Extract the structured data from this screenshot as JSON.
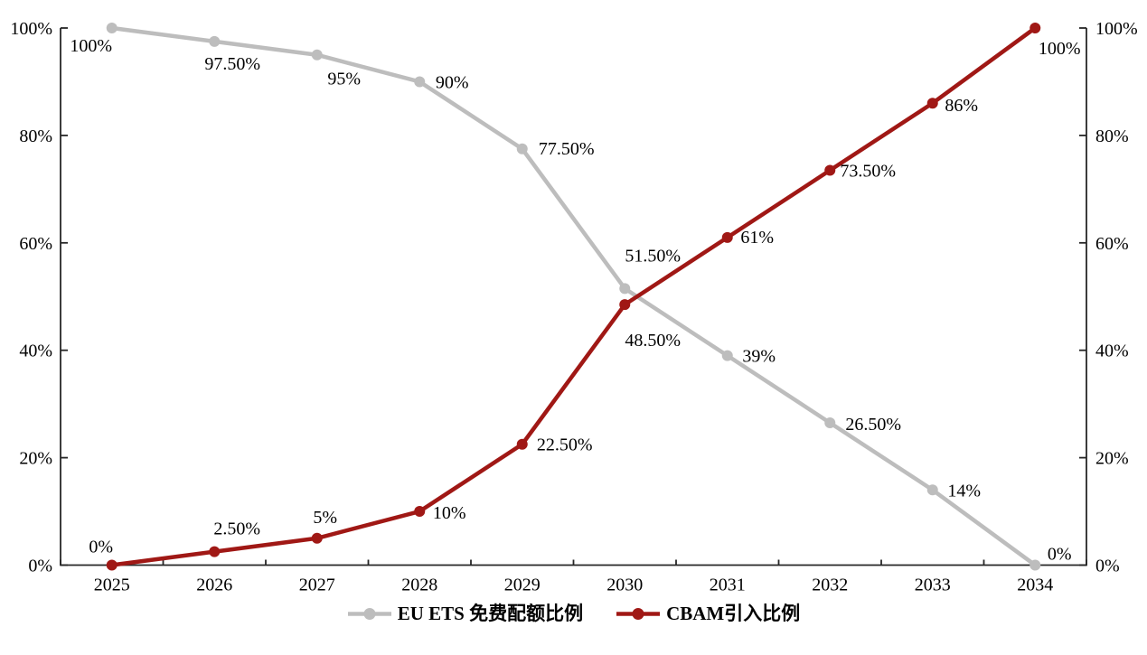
{
  "chart_data": {
    "type": "line",
    "title": "",
    "xlabel": "",
    "ylabel": "",
    "x": [
      "2025",
      "2026",
      "2027",
      "2028",
      "2029",
      "2030",
      "2031",
      "2032",
      "2033",
      "2034"
    ],
    "y_axis": {
      "min": 0,
      "max": 100,
      "ticks": [
        0,
        20,
        40,
        60,
        80,
        100
      ],
      "tick_labels": [
        "0%",
        "20%",
        "40%",
        "60%",
        "80%",
        "100%"
      ],
      "dual_axis": true,
      "grid": false
    },
    "series": [
      {
        "name": "EU ETS 免费配额比例",
        "color": "#BDBDBD",
        "values": [
          100,
          97.5,
          95,
          90,
          77.5,
          51.5,
          39,
          26.5,
          14,
          0
        ],
        "labels": [
          "100%",
          "97.50%",
          "95%",
          "90%",
          "77.50%",
          "51.50%",
          "39%",
          "26.50%",
          "14%",
          "0%"
        ],
        "label_offsets": [
          [
            -23,
            19
          ],
          [
            20,
            24
          ],
          [
            30,
            26
          ],
          [
            36,
            0
          ],
          [
            49,
            -1
          ],
          [
            31,
            -37
          ],
          [
            35,
            0
          ],
          [
            48,
            1
          ],
          [
            35,
            0
          ],
          [
            27,
            -13
          ]
        ]
      },
      {
        "name": "CBAM引入比例",
        "color": "#A01815",
        "values": [
          0,
          2.5,
          5,
          10,
          22.5,
          48.5,
          61,
          73.5,
          86,
          100
        ],
        "labels": [
          "0%",
          "2.50%",
          "5%",
          "10%",
          "22.50%",
          "48.50%",
          "61%",
          "73.50%",
          "86%",
          "100%"
        ],
        "label_offsets": [
          [
            -12,
            -21
          ],
          [
            25,
            -26
          ],
          [
            9,
            -24
          ],
          [
            33,
            1
          ],
          [
            47,
            0
          ],
          [
            31,
            39
          ],
          [
            33,
            -1
          ],
          [
            42,
            0
          ],
          [
            32,
            2
          ],
          [
            27,
            22
          ]
        ]
      }
    ],
    "legend_position": "bottom",
    "axis_color": "#262626",
    "text_color": "#000000"
  }
}
